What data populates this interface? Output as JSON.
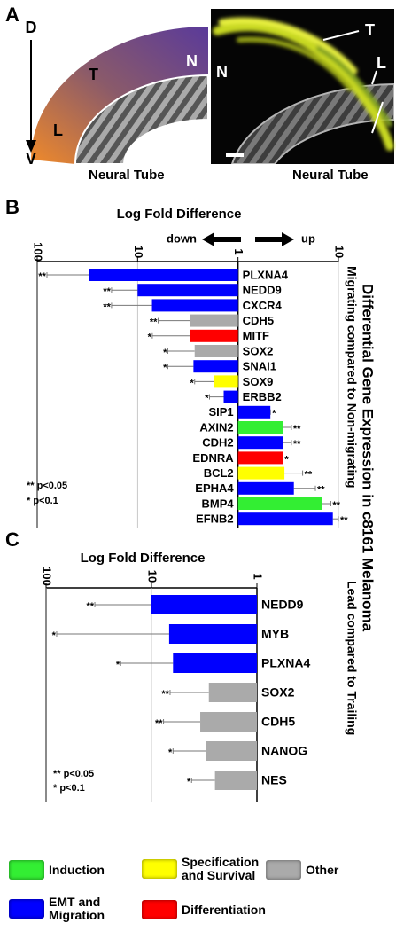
{
  "panel_a": {
    "label": "A",
    "dorsal": "D",
    "ventral": "V",
    "left_labels": [
      "L",
      "T",
      "N"
    ],
    "right_labels": [
      "T",
      "L",
      "N"
    ],
    "tube_label": "Neural Tube"
  },
  "figure_title": "Differential Gene Expression in c8161 Melanoma",
  "legend": [
    {
      "name": "Induction",
      "color": "#33ee33"
    },
    {
      "name": "Specification and Survival",
      "color": "#ffff00"
    },
    {
      "name": "Other",
      "color": "#aaaaaa"
    },
    {
      "name": "EMT and Migration",
      "color": "#0000ff"
    },
    {
      "name": "Differentiation",
      "color": "#ff0000"
    }
  ],
  "chart_data": [
    {
      "type": "bar",
      "panel": "B",
      "x_label": "Log Fold Difference",
      "annotations": [
        "down",
        "up"
      ],
      "subtitle": "Migrating compared to Non-migrating",
      "log_scale": true,
      "grid": true,
      "categories": [
        "PLXNA4",
        "NEDD9",
        "CXCR4",
        "CDH5",
        "MITF",
        "SOX2",
        "SNAI1",
        "SOX9",
        "ERBB2",
        "SIP1",
        "AXIN2",
        "CDH2",
        "EDNRA",
        "BCL2",
        "EPHA4",
        "BMP4",
        "EFNB2"
      ],
      "values": [
        0.033,
        0.1,
        0.139,
        0.33,
        0.33,
        0.37,
        0.36,
        0.58,
        0.72,
        2.1,
        2.8,
        2.8,
        2.8,
        2.9,
        3.6,
        6.8,
        8.8
      ],
      "whiskers": [
        0.0125,
        0.055,
        0.055,
        0.16,
        0.14,
        0.2,
        0.2,
        0.37,
        0.52,
        2.1,
        3.4,
        3.4,
        2.8,
        4.4,
        5.9,
        8.4,
        10
      ],
      "significance": [
        "**",
        "**",
        "**",
        "**",
        "*",
        "*",
        "*",
        "*",
        "*",
        "*",
        "**",
        "**",
        "*",
        "**",
        "**",
        "**",
        "**"
      ],
      "colors": [
        "#0000ff",
        "#0000ff",
        "#0000ff",
        "#aaaaaa",
        "#ff0000",
        "#aaaaaa",
        "#0000ff",
        "#ffff00",
        "#0000ff",
        "#0000ff",
        "#33ee33",
        "#0000ff",
        "#ff0000",
        "#ffff00",
        "#0000ff",
        "#33ee33",
        "#0000ff"
      ],
      "xlim": [
        0.01,
        10
      ],
      "xticks": [
        {
          "value": 0.01,
          "label": "100"
        },
        {
          "value": 0.1,
          "label": "10"
        },
        1,
        10
      ],
      "notes": [
        "** p<0.05",
        " * p<0.1"
      ]
    },
    {
      "type": "bar",
      "panel": "C",
      "x_label": "Log Fold Difference",
      "subtitle": "Lead compared to Trailing",
      "log_scale": true,
      "grid": true,
      "categories": [
        "NEDD9",
        "MYB",
        "PLXNA4",
        "SOX2",
        "CDH5",
        "NANOG",
        "NES"
      ],
      "values": [
        0.1,
        0.147,
        0.16,
        0.35,
        0.29,
        0.33,
        0.4
      ],
      "whiskers": [
        0.029,
        0.0126,
        0.051,
        0.15,
        0.13,
        0.16,
        0.24
      ],
      "significance": [
        "**",
        "*",
        "*",
        "**",
        "**",
        "*",
        "*"
      ],
      "colors": [
        "#0000ff",
        "#0000ff",
        "#0000ff",
        "#aaaaaa",
        "#aaaaaa",
        "#aaaaaa",
        "#aaaaaa"
      ],
      "xlim": [
        0.01,
        1
      ],
      "xticks": [
        {
          "value": 0.01,
          "label": "100"
        },
        {
          "value": 0.1,
          "label": "10"
        },
        1
      ],
      "notes": [
        "** p<0.05",
        " * p<0.1"
      ]
    }
  ]
}
